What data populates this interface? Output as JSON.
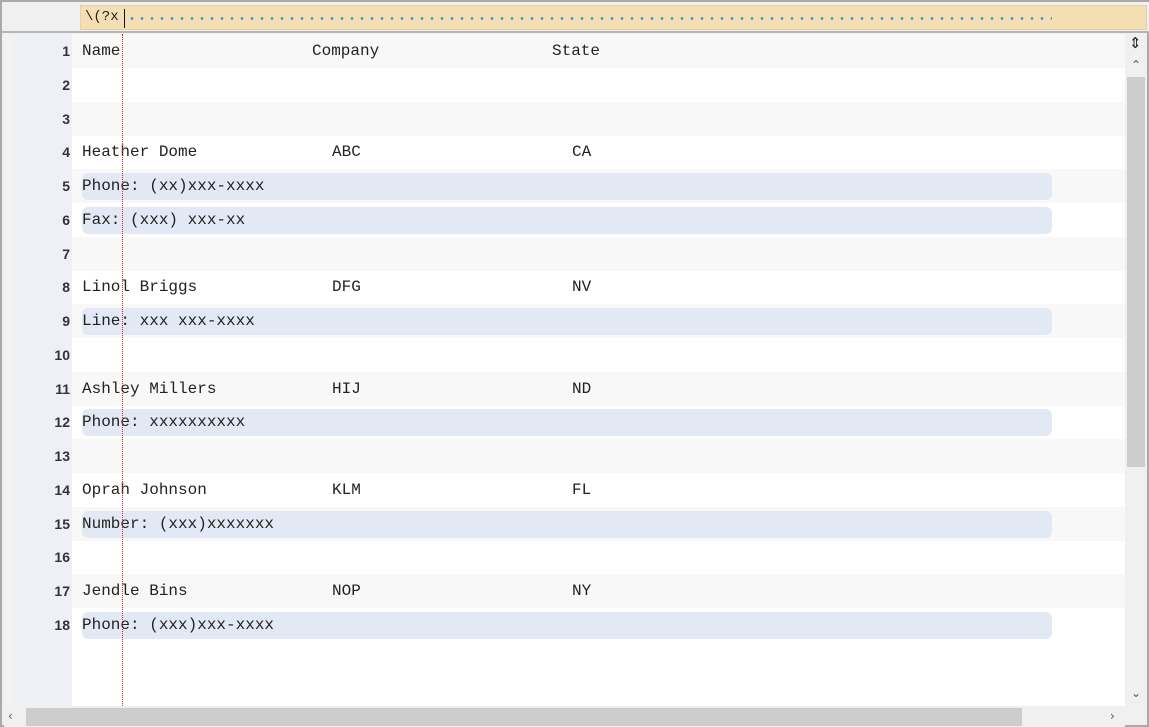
{
  "search": {
    "value": "\\(?x"
  },
  "lines": [
    {
      "n": "1",
      "cols": [
        "Name",
        "Company",
        "State"
      ],
      "header": true
    },
    {
      "n": "2",
      "cols": []
    },
    {
      "n": "3",
      "cols": []
    },
    {
      "n": "4",
      "cols": [
        "Heather Dome",
        "ABC",
        "CA"
      ]
    },
    {
      "n": "5",
      "cols": [
        "Phone: (xx)xxx-xxxx"
      ],
      "match": true
    },
    {
      "n": "6",
      "cols": [
        "Fax: (xxx) xxx-xx"
      ],
      "match": true
    },
    {
      "n": "7",
      "cols": []
    },
    {
      "n": "8",
      "cols": [
        "Linol Briggs",
        "DFG",
        "NV"
      ]
    },
    {
      "n": "9",
      "cols": [
        "Line: xxx xxx-xxxx"
      ],
      "match": true
    },
    {
      "n": "10",
      "cols": []
    },
    {
      "n": "11",
      "cols": [
        "Ashley Millers",
        "HIJ",
        "ND"
      ]
    },
    {
      "n": "12",
      "cols": [
        "Phone: xxxxxxxxxx"
      ],
      "match": true
    },
    {
      "n": "13",
      "cols": []
    },
    {
      "n": "14",
      "cols": [
        "Oprah Johnson",
        "KLM",
        "FL"
      ]
    },
    {
      "n": "15",
      "cols": [
        "Number: (xxx)xxxxxxx"
      ],
      "match": true
    },
    {
      "n": "16",
      "cols": []
    },
    {
      "n": "17",
      "cols": [
        "Jendle Bins",
        "NOP",
        "NY"
      ]
    },
    {
      "n": "18",
      "cols": [
        "Phone: (xxx)xxx-xxxx"
      ],
      "match": true
    }
  ],
  "icons": {
    "split": "split-view-icon",
    "up": "chevron-up-icon",
    "down": "chevron-down-icon",
    "left": "chevron-left-icon",
    "right": "chevron-right-icon"
  },
  "colors": {
    "search_bg": "#f4deb4",
    "match_bg": "#e3e9f4",
    "guide": "#e02020"
  }
}
